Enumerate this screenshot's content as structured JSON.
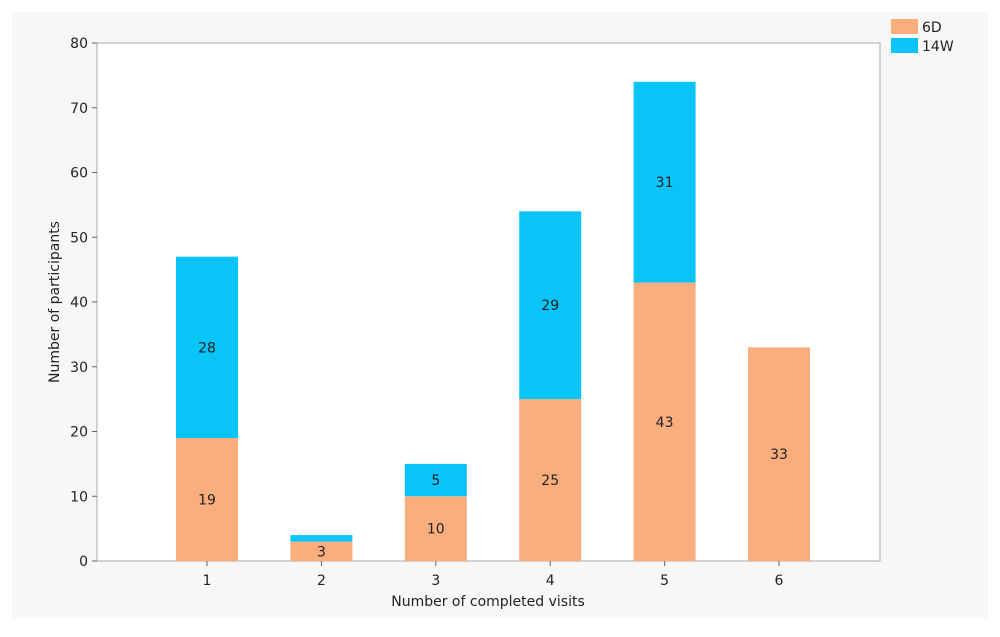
{
  "chart_data": {
    "type": "bar",
    "stacked": true,
    "categories": [
      "1",
      "2",
      "3",
      "4",
      "5",
      "6"
    ],
    "series": [
      {
        "name": "6D",
        "color": "#FBAE7D",
        "values": [
          19,
          3,
          10,
          25,
          43,
          33
        ],
        "labels": [
          "19",
          "3",
          "10",
          "25",
          "43",
          "33"
        ]
      },
      {
        "name": "14W",
        "color": "#09C4F7",
        "values": [
          28,
          1,
          5,
          29,
          31,
          0
        ],
        "labels": [
          "28",
          "",
          "5",
          "29",
          "31",
          ""
        ]
      }
    ],
    "title": "",
    "xlabel": "Number of completed visits",
    "ylabel": "Number of participants",
    "ylim": [
      0,
      80
    ],
    "yticks": [
      0,
      10,
      20,
      30,
      40,
      50,
      60,
      70,
      80
    ],
    "grid": false,
    "legend_position": "top-right"
  }
}
